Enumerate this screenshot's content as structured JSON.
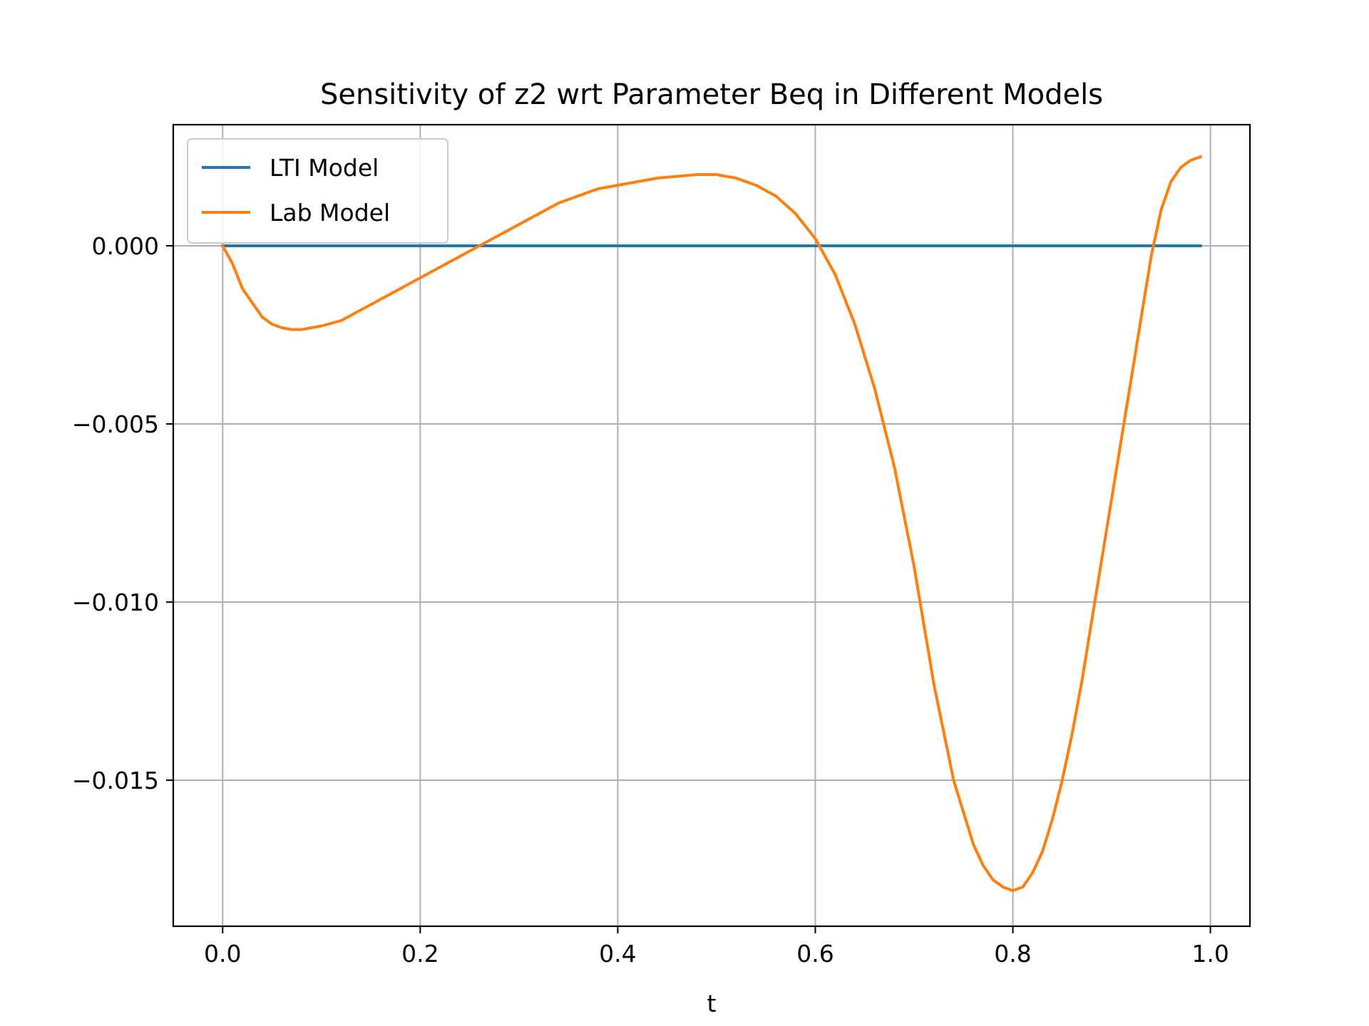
{
  "chart_data": {
    "type": "line",
    "title": "Sensitivity of z2 wrt Parameter Beq in Different Models",
    "xlabel": "t",
    "ylabel": "",
    "xlim": [
      -0.05,
      1.04
    ],
    "ylim": [
      -0.0191,
      0.0034
    ],
    "xticks": [
      0.0,
      0.2,
      0.4,
      0.6,
      0.8,
      1.0
    ],
    "xtick_labels": [
      "0.0",
      "0.2",
      "0.4",
      "0.6",
      "0.8",
      "1.0"
    ],
    "yticks": [
      0.0,
      -0.005,
      -0.01,
      -0.015
    ],
    "ytick_labels": [
      "0.000",
      "−0.005",
      "−0.010",
      "−0.015"
    ],
    "grid": true,
    "legend_position": "top-left",
    "series": [
      {
        "name": "LTI Model",
        "color": "#1f77b4",
        "x": [
          0.0,
          0.99
        ],
        "y": [
          0.0,
          0.0
        ]
      },
      {
        "name": "Lab Model",
        "color": "#ff7f0e",
        "x": [
          0.0,
          0.01,
          0.02,
          0.03,
          0.04,
          0.05,
          0.06,
          0.07,
          0.08,
          0.09,
          0.1,
          0.12,
          0.14,
          0.16,
          0.18,
          0.2,
          0.22,
          0.24,
          0.26,
          0.28,
          0.3,
          0.32,
          0.34,
          0.36,
          0.38,
          0.4,
          0.42,
          0.44,
          0.46,
          0.48,
          0.5,
          0.52,
          0.54,
          0.56,
          0.58,
          0.6,
          0.62,
          0.64,
          0.66,
          0.68,
          0.7,
          0.72,
          0.74,
          0.76,
          0.77,
          0.78,
          0.79,
          0.8,
          0.81,
          0.82,
          0.83,
          0.84,
          0.85,
          0.86,
          0.87,
          0.88,
          0.89,
          0.9,
          0.91,
          0.92,
          0.93,
          0.94,
          0.95,
          0.96,
          0.97,
          0.98,
          0.99
        ],
        "y": [
          0.0,
          -0.0005,
          -0.0012,
          -0.0016,
          -0.002,
          -0.0022,
          -0.0023,
          -0.00235,
          -0.00235,
          -0.0023,
          -0.00225,
          -0.0021,
          -0.0018,
          -0.0015,
          -0.0012,
          -0.0009,
          -0.0006,
          -0.0003,
          0.0,
          0.0003,
          0.0006,
          0.0009,
          0.0012,
          0.0014,
          0.0016,
          0.0017,
          0.0018,
          0.0019,
          0.00195,
          0.002,
          0.002,
          0.0019,
          0.0017,
          0.0014,
          0.0009,
          0.0002,
          -0.0008,
          -0.0022,
          -0.004,
          -0.0062,
          -0.009,
          -0.0123,
          -0.015,
          -0.0168,
          -0.0174,
          -0.0178,
          -0.018,
          -0.0181,
          -0.018,
          -0.0176,
          -0.017,
          -0.0161,
          -0.015,
          -0.0137,
          -0.0122,
          -0.0105,
          -0.0088,
          -0.0071,
          -0.0054,
          -0.0037,
          -0.002,
          -0.0003,
          0.001,
          0.0018,
          0.0022,
          0.0024,
          0.0025
        ]
      }
    ]
  }
}
